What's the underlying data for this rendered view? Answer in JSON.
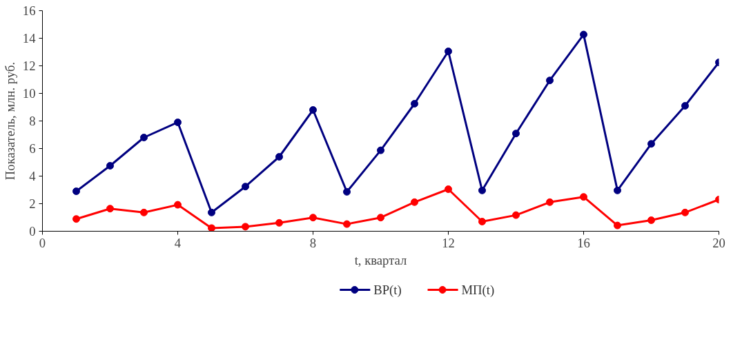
{
  "chart_data": {
    "type": "line",
    "xlabel": "t, квартал",
    "ylabel": "Показатель, млн. руб.",
    "xlim": [
      0,
      20
    ],
    "xticks": [
      0,
      4,
      8,
      12,
      16,
      20
    ],
    "ylim": [
      0,
      16
    ],
    "yticks": [
      0,
      2,
      4,
      6,
      8,
      10,
      12,
      14,
      16
    ],
    "x": [
      1,
      2,
      3,
      4,
      5,
      6,
      7,
      8,
      9,
      10,
      11,
      12,
      13,
      14,
      15,
      16,
      17,
      18,
      19,
      20
    ],
    "series": [
      {
        "name": "ВР(t)",
        "color": "#000080",
        "values": [
          2.9,
          4.75,
          6.8,
          7.9,
          1.36,
          3.24,
          5.4,
          8.8,
          2.86,
          5.87,
          9.25,
          13.05,
          2.96,
          7.09,
          10.94,
          14.27,
          2.96,
          6.34,
          9.1,
          12.25
        ]
      },
      {
        "name": "МП(t)",
        "color": "#ff0000",
        "values": [
          0.89,
          1.64,
          1.36,
          1.92,
          0.23,
          0.33,
          0.61,
          0.99,
          0.52,
          0.99,
          2.11,
          3.05,
          0.7,
          1.17,
          2.11,
          2.49,
          0.42,
          0.8,
          1.36,
          2.3
        ]
      }
    ],
    "marker": "circle",
    "line_style": "solid",
    "grid": false,
    "legend": "bottom"
  }
}
